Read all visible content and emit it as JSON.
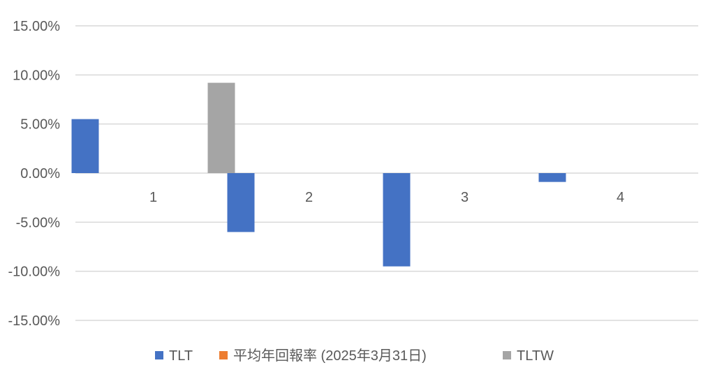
{
  "chart_data": {
    "type": "bar",
    "categories": [
      "1",
      "2",
      "3",
      "4"
    ],
    "series": [
      {
        "name": "TLT",
        "color": "#4472c4",
        "values": [
          5.5,
          -6.0,
          -9.5,
          -0.9
        ]
      },
      {
        "name": "平均年回報率 (2025年3月31日)",
        "color": "#ed7d31",
        "values": [
          null,
          null,
          null,
          null
        ]
      },
      {
        "name": "TLTW",
        "color": "#a5a5a5",
        "values": [
          9.2,
          null,
          null,
          null
        ]
      }
    ],
    "yticks": [
      "15.00%",
      "10.00%",
      "5.00%",
      "0.00%",
      "-5.00%",
      "-10.00%",
      "-15.00%"
    ],
    "ylim": [
      -15,
      15
    ],
    "grid": true,
    "legend_position": "bottom"
  }
}
